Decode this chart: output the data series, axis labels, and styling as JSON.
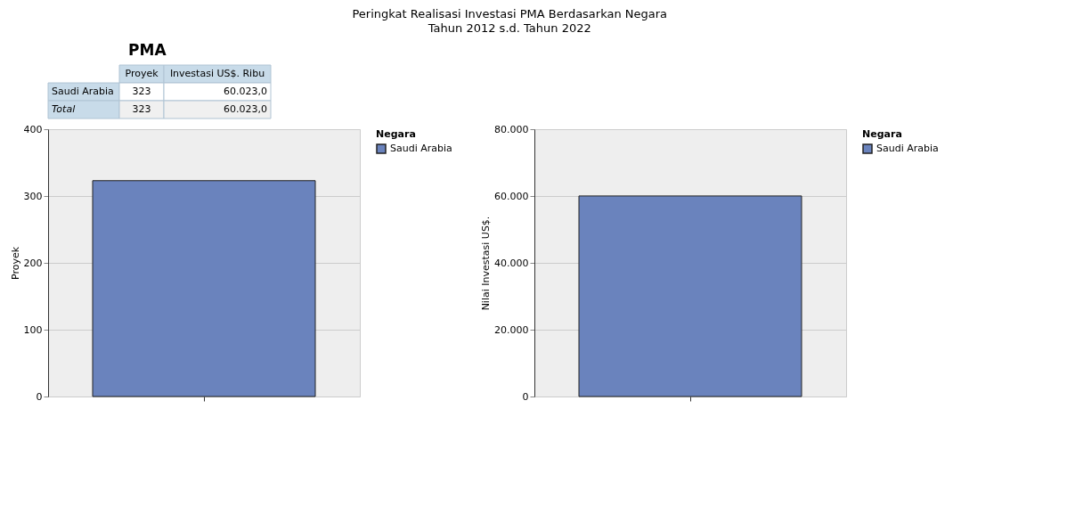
{
  "chart_data": [
    {
      "type": "other",
      "title": "Peringkat Realisasi Investasi PMA Berdasarkan Negara",
      "subtitle": "Tahun 2012 s.d. Tahun 2022",
      "annotations": [
        "PMA",
        "Proyek",
        "Investasi US$. Ribu",
        "Saudi Arabia",
        "323",
        "60.023,0",
        "Total",
        "323",
        "60.023,0"
      ]
    },
    {
      "type": "bar",
      "categories": [
        null
      ],
      "ylabel": "Proyek",
      "legend_title": "Negara",
      "series": [
        {
          "name": "Saudi Arabia",
          "color": "#6a83bd",
          "values": [
            323
          ]
        }
      ],
      "ylim": [
        0,
        400
      ],
      "yticks": [
        0,
        100,
        200,
        300,
        400
      ],
      "grid": "y",
      "legend": "top right"
    },
    {
      "type": "bar",
      "categories": [
        null
      ],
      "ylabel": "Nilai Investasi US$.",
      "legend_title": "Negara",
      "series": [
        {
          "name": "Saudi Arabia",
          "color": "#6a83bd",
          "values": [
            60023
          ]
        }
      ],
      "ylim": [
        0,
        80000
      ],
      "yticks": [
        0,
        {
          "value": 20000,
          "label": "20.000"
        },
        {
          "value": 40000,
          "label": "40.000"
        },
        {
          "value": 60000,
          "label": "60.000"
        },
        {
          "value": 80000,
          "label": "80.000"
        }
      ],
      "grid": "y",
      "legend": "top right"
    }
  ]
}
